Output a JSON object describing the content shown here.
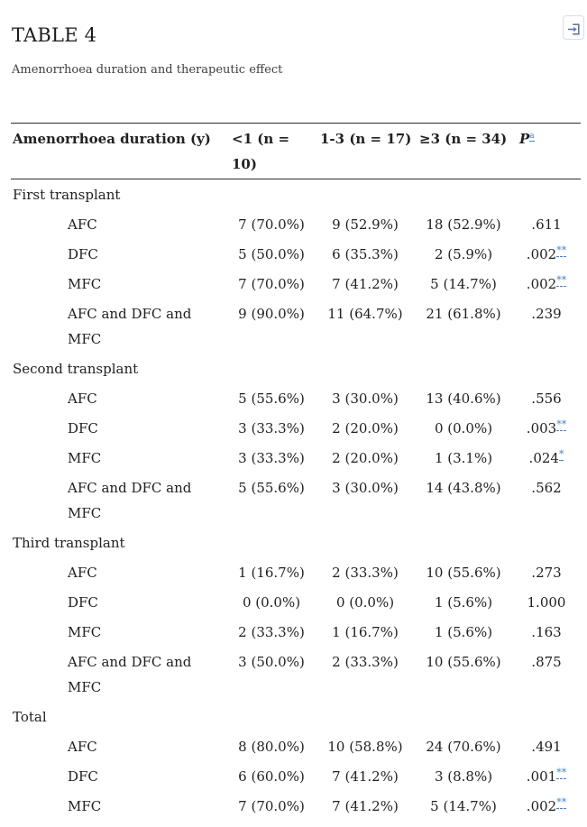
{
  "page": {
    "title": "TABLE 4",
    "caption": "Amenorrhoea duration and therapeutic effect"
  },
  "toolbar": {
    "expand_icon": "expand-table-icon"
  },
  "colors": {
    "text": "#212121",
    "footnote_link_blue": "#4183c4",
    "table_border": "#2e2e2e",
    "expand_icon_blue": "#64789f",
    "expand_btn_border": "#d7dde8"
  },
  "table": {
    "columns": {
      "label": "Amenorrhoea duration (y)",
      "group1": "<1 (n = 10)",
      "group2": "1-3 (n = 17)",
      "group3": "≥3 (n = 34)",
      "p": "P",
      "p_header_marker": "a"
    },
    "sections": [
      {
        "label": "First transplant",
        "rows": [
          {
            "label": "AFC",
            "values": [
              "7 (70.0%)",
              "9 (52.9%)",
              "18 (52.9%)"
            ],
            "p": ".611",
            "p_marker": ""
          },
          {
            "label": "DFC",
            "values": [
              "5 (50.0%)",
              "6 (35.3%)",
              "2 (5.9%)"
            ],
            "p": ".002",
            "p_marker": "**"
          },
          {
            "label": "MFC",
            "values": [
              "7 (70.0%)",
              "7 (41.2%)",
              "5 (14.7%)"
            ],
            "p": ".002",
            "p_marker": "**"
          },
          {
            "label": "AFC and DFC and MFC",
            "values": [
              "9 (90.0%)",
              "11 (64.7%)",
              "21 (61.8%)"
            ],
            "p": ".239",
            "p_marker": ""
          }
        ]
      },
      {
        "label": "Second transplant",
        "rows": [
          {
            "label": "AFC",
            "values": [
              "5 (55.6%)",
              "3 (30.0%)",
              "13 (40.6%)"
            ],
            "p": ".556",
            "p_marker": ""
          },
          {
            "label": "DFC",
            "values": [
              "3 (33.3%)",
              "2 (20.0%)",
              "0 (0.0%)"
            ],
            "p": ".003",
            "p_marker": "**"
          },
          {
            "label": "MFC",
            "values": [
              "3 (33.3%)",
              "2 (20.0%)",
              "1 (3.1%)"
            ],
            "p": ".024",
            "p_marker": "*"
          },
          {
            "label": "AFC and DFC and MFC",
            "values": [
              "5 (55.6%)",
              "3 (30.0%)",
              "14 (43.8%)"
            ],
            "p": ".562",
            "p_marker": ""
          }
        ]
      },
      {
        "label": "Third transplant",
        "rows": [
          {
            "label": "AFC",
            "values": [
              "1 (16.7%)",
              "2 (33.3%)",
              "10 (55.6%)"
            ],
            "p": ".273",
            "p_marker": ""
          },
          {
            "label": "DFC",
            "values": [
              "0 (0.0%)",
              "0 (0.0%)",
              "1 (5.6%)"
            ],
            "p": "1.000",
            "p_marker": ""
          },
          {
            "label": "MFC",
            "values": [
              "2 (33.3%)",
              "1 (16.7%)",
              "1 (5.6%)"
            ],
            "p": ".163",
            "p_marker": ""
          },
          {
            "label": "AFC and DFC and MFC",
            "values": [
              "3 (50.0%)",
              "2 (33.3%)",
              "10 (55.6%)"
            ],
            "p": ".875",
            "p_marker": ""
          }
        ]
      },
      {
        "label": "Total",
        "rows": [
          {
            "label": "AFC",
            "values": [
              "8 (80.0%)",
              "10 (58.8%)",
              "24 (70.6%)"
            ],
            "p": ".491",
            "p_marker": ""
          },
          {
            "label": "DFC",
            "values": [
              "6 (60.0%)",
              "7 (41.2%)",
              "3 (8.8%)"
            ],
            "p": ".001",
            "p_marker": "**"
          },
          {
            "label": "MFC",
            "values": [
              "7 (70.0%)",
              "7 (41.2%)",
              "5 (14.7%)"
            ],
            "p": ".002",
            "p_marker": "**"
          }
        ]
      }
    ]
  }
}
